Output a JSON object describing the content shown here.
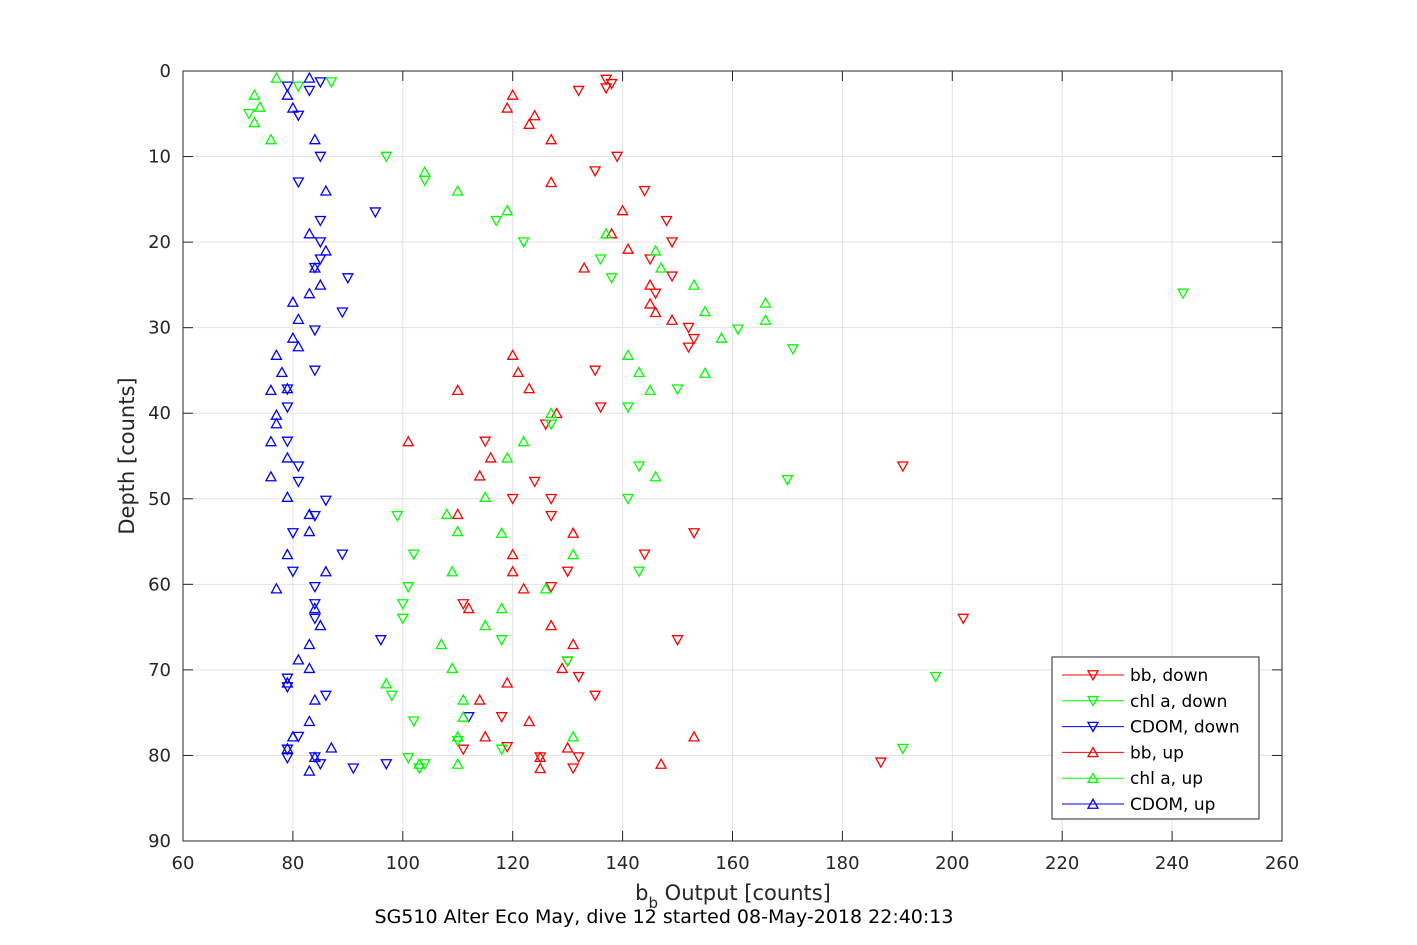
{
  "chart_data": {
    "type": "scatter",
    "xlabel_base": "b",
    "xlabel_sub": "b",
    "xlabel_rest": " Output [counts]",
    "ylabel": "Depth [counts]",
    "caption": "SG510 Alter Eco May, dive 12 started 08-May-2018 22:40:13",
    "xlim": [
      60,
      260
    ],
    "ylim": [
      0,
      90
    ],
    "y_reversed": true,
    "grid": true,
    "legend_position": "bottom-right",
    "xticks": [
      60,
      80,
      100,
      120,
      140,
      160,
      180,
      200,
      220,
      240,
      260
    ],
    "yticks": [
      0,
      10,
      20,
      30,
      40,
      50,
      60,
      70,
      80,
      90
    ],
    "series": [
      {
        "name": "bb, down",
        "color": "#ff0000",
        "marker": "triangle-down",
        "points": [
          [
            137,
            1
          ],
          [
            138,
            1.5
          ],
          [
            137,
            2
          ],
          [
            132,
            2.3
          ],
          [
            139,
            10
          ],
          [
            135,
            11.7
          ],
          [
            144,
            14
          ],
          [
            148,
            17.5
          ],
          [
            149,
            20
          ],
          [
            145,
            22
          ],
          [
            149,
            24
          ],
          [
            146,
            26
          ],
          [
            152,
            30
          ],
          [
            153,
            31.3
          ],
          [
            152,
            32.3
          ],
          [
            135,
            35
          ],
          [
            136,
            39.3
          ],
          [
            126,
            41.3
          ],
          [
            115,
            43.3
          ],
          [
            124,
            48
          ],
          [
            127,
            50
          ],
          [
            120,
            50
          ],
          [
            127,
            52
          ],
          [
            153,
            54
          ],
          [
            144,
            56.5
          ],
          [
            130,
            58.5
          ],
          [
            127,
            60.3
          ],
          [
            111,
            62.3
          ],
          [
            202,
            64
          ],
          [
            150,
            66.5
          ],
          [
            130,
            69
          ],
          [
            132,
            70.8
          ],
          [
            135,
            73
          ],
          [
            118,
            75.5
          ],
          [
            119,
            79
          ],
          [
            111,
            79.3
          ],
          [
            132,
            80.2
          ],
          [
            125,
            80.2
          ],
          [
            131,
            81.5
          ],
          [
            187,
            80.8
          ],
          [
            191,
            46.2
          ]
        ]
      },
      {
        "name": "chl a, down",
        "color": "#00ff00",
        "marker": "triangle-down",
        "points": [
          [
            87,
            1.3
          ],
          [
            81,
            1.8
          ],
          [
            72,
            5
          ],
          [
            97,
            10
          ],
          [
            104,
            12.8
          ],
          [
            117,
            17.5
          ],
          [
            122,
            20
          ],
          [
            136,
            22
          ],
          [
            138,
            24.2
          ],
          [
            242,
            26
          ],
          [
            161,
            30.2
          ],
          [
            171,
            32.5
          ],
          [
            150,
            37.2
          ],
          [
            141,
            39.3
          ],
          [
            127,
            41.3
          ],
          [
            170,
            47.8
          ],
          [
            141,
            50
          ],
          [
            99,
            52
          ],
          [
            102,
            56.5
          ],
          [
            101,
            60.3
          ],
          [
            100,
            62.3
          ],
          [
            100,
            64
          ],
          [
            118,
            66.5
          ],
          [
            130,
            69
          ],
          [
            98,
            73
          ],
          [
            102,
            76
          ],
          [
            110,
            78.3
          ],
          [
            118,
            79.3
          ],
          [
            101,
            80.3
          ],
          [
            104,
            81
          ],
          [
            103,
            81.5
          ],
          [
            191,
            79.2
          ],
          [
            197,
            70.8
          ],
          [
            143,
            58.5
          ],
          [
            143,
            46.2
          ]
        ]
      },
      {
        "name": "CDOM, down",
        "color": "#0000ff",
        "marker": "triangle-down",
        "points": [
          [
            85,
            1.3
          ],
          [
            79,
            1.8
          ],
          [
            83,
            2.3
          ],
          [
            81,
            5.2
          ],
          [
            85,
            10
          ],
          [
            81,
            13
          ],
          [
            95,
            16.5
          ],
          [
            85,
            17.5
          ],
          [
            85,
            20
          ],
          [
            85,
            22
          ],
          [
            90,
            24.2
          ],
          [
            84,
            23
          ],
          [
            89,
            28.2
          ],
          [
            84,
            30.3
          ],
          [
            84,
            35
          ],
          [
            79,
            37.2
          ],
          [
            79,
            39.3
          ],
          [
            79,
            43.3
          ],
          [
            81,
            46.2
          ],
          [
            81,
            48
          ],
          [
            86,
            50.2
          ],
          [
            84,
            52
          ],
          [
            80,
            54
          ],
          [
            89,
            56.5
          ],
          [
            80,
            58.5
          ],
          [
            84,
            60.3
          ],
          [
            84,
            62.3
          ],
          [
            84,
            64
          ],
          [
            96,
            66.5
          ],
          [
            79,
            71
          ],
          [
            79,
            72
          ],
          [
            86,
            73
          ],
          [
            112,
            75.5
          ],
          [
            81,
            77.8
          ],
          [
            79,
            79.3
          ],
          [
            79,
            80.3
          ],
          [
            84,
            80.2
          ],
          [
            85,
            81
          ],
          [
            91,
            81.5
          ],
          [
            97,
            81
          ]
        ]
      },
      {
        "name": "bb, up",
        "color": "#ff0000",
        "marker": "triangle-up",
        "points": [
          [
            120,
            2.8
          ],
          [
            119,
            4.3
          ],
          [
            124,
            5.2
          ],
          [
            123,
            6.2
          ],
          [
            127,
            8
          ],
          [
            127,
            13
          ],
          [
            140,
            16.3
          ],
          [
            138,
            19
          ],
          [
            141,
            20.8
          ],
          [
            133,
            23
          ],
          [
            145,
            25
          ],
          [
            145,
            27.2
          ],
          [
            146,
            28.2
          ],
          [
            149,
            29.1
          ],
          [
            120,
            33.2
          ],
          [
            121,
            35.2
          ],
          [
            123,
            37.1
          ],
          [
            110,
            37.3
          ],
          [
            128,
            40
          ],
          [
            101,
            43.3
          ],
          [
            116,
            45.2
          ],
          [
            114,
            47.3
          ],
          [
            110,
            51.8
          ],
          [
            131,
            54
          ],
          [
            120,
            56.5
          ],
          [
            120,
            58.5
          ],
          [
            122,
            60.5
          ],
          [
            112,
            62.8
          ],
          [
            127,
            64.8
          ],
          [
            131,
            67
          ],
          [
            129,
            69.8
          ],
          [
            119,
            71.5
          ],
          [
            114,
            73.5
          ],
          [
            123,
            76
          ],
          [
            115,
            77.8
          ],
          [
            153,
            77.8
          ],
          [
            130,
            79.1
          ],
          [
            125,
            80.2
          ],
          [
            125,
            81.5
          ],
          [
            147,
            81
          ]
        ]
      },
      {
        "name": "chl a, up",
        "color": "#00ff00",
        "marker": "triangle-up",
        "points": [
          [
            77,
            0.8
          ],
          [
            73,
            2.8
          ],
          [
            74,
            4.2
          ],
          [
            73,
            6
          ],
          [
            76,
            8
          ],
          [
            104,
            11.8
          ],
          [
            110,
            14
          ],
          [
            119,
            16.3
          ],
          [
            137,
            19
          ],
          [
            146,
            21
          ],
          [
            147,
            23
          ],
          [
            153,
            25
          ],
          [
            155,
            28.1
          ],
          [
            166,
            27.1
          ],
          [
            166,
            29.1
          ],
          [
            158,
            31.2
          ],
          [
            141,
            33.2
          ],
          [
            143,
            35.2
          ],
          [
            155,
            35.3
          ],
          [
            145,
            37.3
          ],
          [
            127,
            40
          ],
          [
            122,
            43.3
          ],
          [
            119,
            45.2
          ],
          [
            146,
            47.4
          ],
          [
            115,
            49.8
          ],
          [
            108,
            51.8
          ],
          [
            110,
            53.8
          ],
          [
            118,
            54
          ],
          [
            131,
            56.5
          ],
          [
            109,
            58.5
          ],
          [
            126,
            60.5
          ],
          [
            118,
            62.8
          ],
          [
            115,
            64.8
          ],
          [
            107,
            67
          ],
          [
            109,
            69.8
          ],
          [
            97,
            71.6
          ],
          [
            111,
            73.5
          ],
          [
            111,
            75.5
          ],
          [
            131,
            77.8
          ],
          [
            110,
            77.8
          ],
          [
            103,
            81
          ],
          [
            110,
            81
          ]
        ]
      },
      {
        "name": "CDOM, up",
        "color": "#0000ff",
        "marker": "triangle-up",
        "points": [
          [
            83,
            0.8
          ],
          [
            79,
            2.8
          ],
          [
            80,
            4.3
          ],
          [
            84,
            8
          ],
          [
            86,
            14
          ],
          [
            83,
            19
          ],
          [
            86,
            21
          ],
          [
            84,
            23
          ],
          [
            85,
            25
          ],
          [
            83,
            26
          ],
          [
            80,
            27
          ],
          [
            81,
            29
          ],
          [
            80,
            31.2
          ],
          [
            81,
            32.2
          ],
          [
            77,
            33.2
          ],
          [
            78,
            35.2
          ],
          [
            76,
            37.3
          ],
          [
            79,
            37.1
          ],
          [
            77,
            40.2
          ],
          [
            77,
            41.2
          ],
          [
            76,
            43.3
          ],
          [
            79,
            45.2
          ],
          [
            76,
            47.4
          ],
          [
            79,
            49.8
          ],
          [
            83,
            51.8
          ],
          [
            83,
            53.8
          ],
          [
            79,
            56.5
          ],
          [
            86,
            58.5
          ],
          [
            77,
            60.5
          ],
          [
            84,
            62.8
          ],
          [
            85,
            64.8
          ],
          [
            83,
            67
          ],
          [
            81,
            68.8
          ],
          [
            83,
            69.8
          ],
          [
            79,
            71.5
          ],
          [
            84,
            73.5
          ],
          [
            83,
            76
          ],
          [
            80,
            77.8
          ],
          [
            87,
            79.1
          ],
          [
            79,
            79.2
          ],
          [
            84,
            80.2
          ],
          [
            83,
            81.8
          ]
        ]
      }
    ]
  }
}
